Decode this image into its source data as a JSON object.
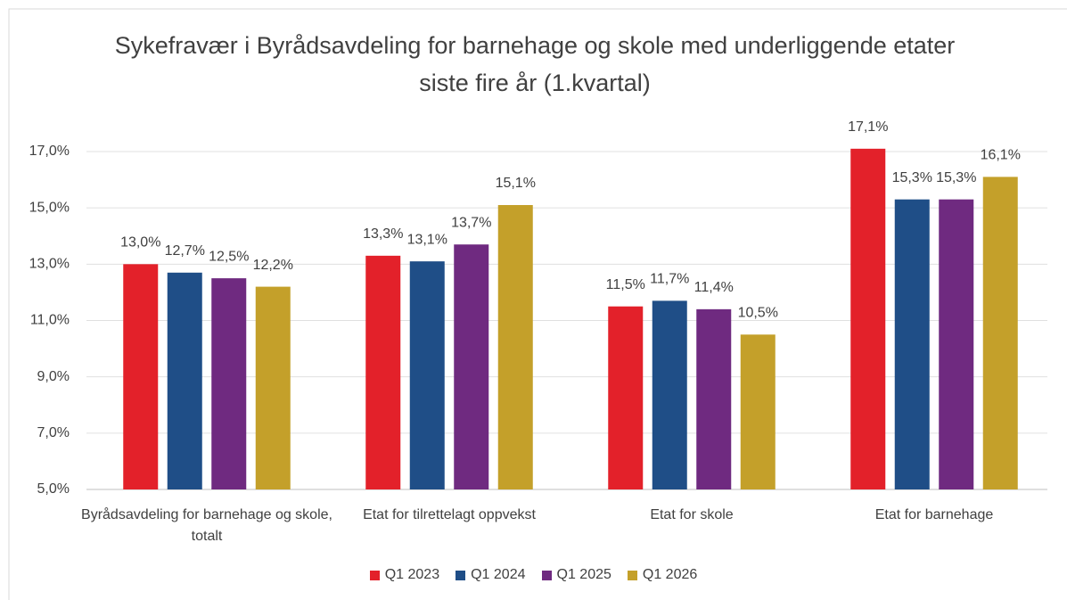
{
  "chart_data": {
    "type": "bar",
    "title": "Sykefravær i Byrådsavdeling for barnehage og skole med underliggende etater siste fire år (1.kvartal)",
    "categories": [
      "Byrådsavdeling for barnehage og skole, totalt",
      "Etat for tilrettelagt oppvekst",
      "Etat for skole",
      "Etat for barnehage"
    ],
    "series": [
      {
        "name": "Q1 2023",
        "color": "#e3212a",
        "values": [
          13.0,
          13.3,
          11.5,
          17.1
        ],
        "value_labels": [
          "13,0%",
          "13,3%",
          "11,5%",
          "17,1%"
        ]
      },
      {
        "name": "Q1 2024",
        "color": "#1f4e87",
        "values": [
          12.7,
          13.1,
          11.7,
          15.3
        ],
        "value_labels": [
          "12,7%",
          "13,1%",
          "11,7%",
          "15,3%"
        ]
      },
      {
        "name": "Q1 2025",
        "color": "#6f2a80",
        "values": [
          12.5,
          13.7,
          11.4,
          15.3
        ],
        "value_labels": [
          "12,5%",
          "13,7%",
          "11,4%",
          "15,3%"
        ]
      },
      {
        "name": "Q1 2026",
        "color": "#c4a02a",
        "values": [
          12.2,
          15.1,
          10.5,
          16.1
        ],
        "value_labels": [
          "12,2%",
          "15,1%",
          "10,5%",
          "16,1%"
        ]
      }
    ],
    "ylim": [
      5,
      18
    ],
    "yticks": [
      {
        "value": 5,
        "label": "5,0%"
      },
      {
        "value": 7,
        "label": "7,0%"
      },
      {
        "value": 9,
        "label": "9,0%"
      },
      {
        "value": 11,
        "label": "11,0%"
      },
      {
        "value": 13,
        "label": "13,0%"
      },
      {
        "value": 15,
        "label": "15,0%"
      },
      {
        "value": 17,
        "label": "17,0%"
      }
    ],
    "grid": true,
    "legend": "bottom"
  }
}
